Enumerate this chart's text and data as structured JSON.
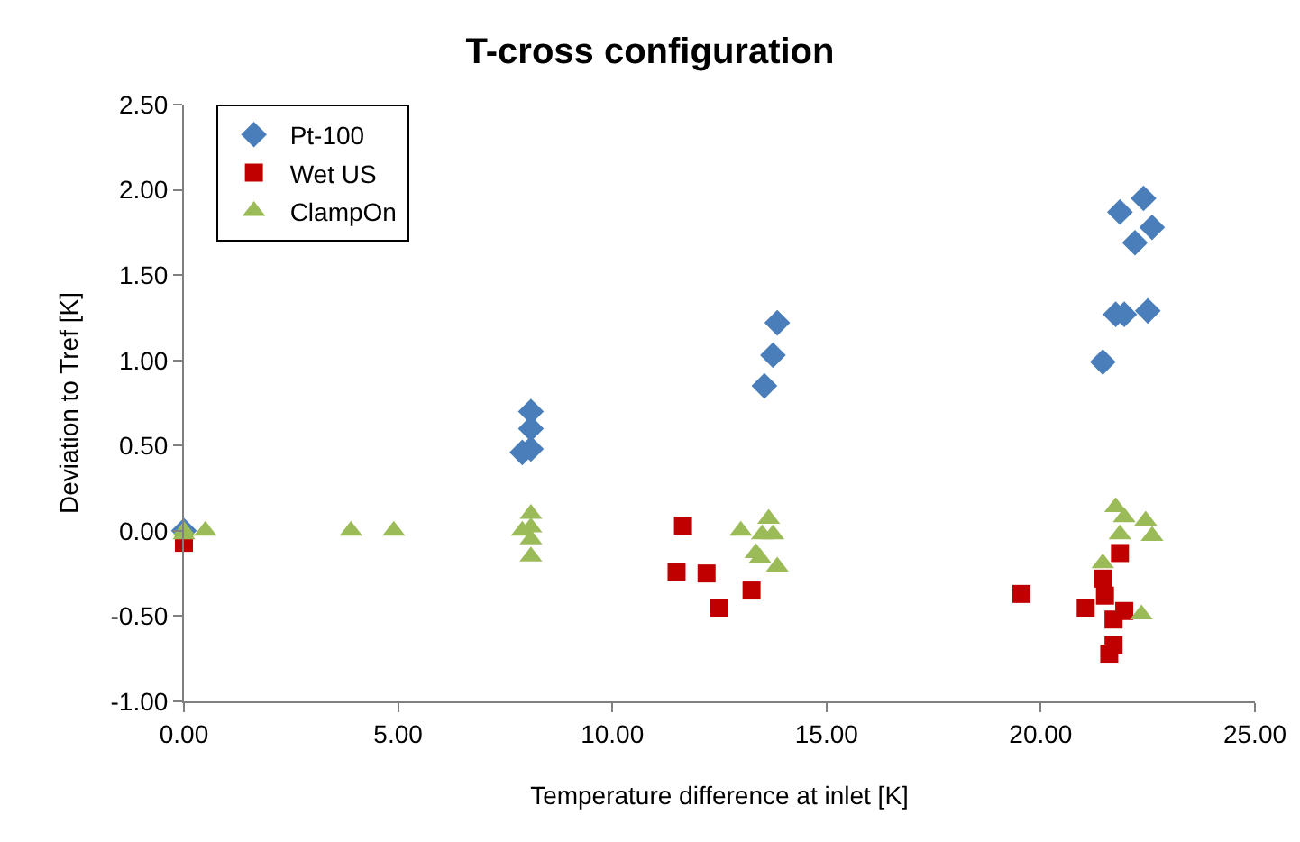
{
  "chart_data": {
    "type": "scatter",
    "title": "T-cross configuration",
    "xlabel": "Temperature difference at inlet [K]",
    "ylabel": "Deviation to Tref [K]",
    "xlim": [
      0,
      25
    ],
    "xticks": [
      {
        "value": 0,
        "label": "0.00"
      },
      {
        "value": 5,
        "label": "5.00"
      },
      {
        "value": 10,
        "label": "10.00"
      },
      {
        "value": 15,
        "label": "15.00"
      },
      {
        "value": 20,
        "label": "20.00"
      },
      {
        "value": 25,
        "label": "25.00"
      }
    ],
    "ylim": [
      -1,
      2.5
    ],
    "yticks": [
      {
        "value": -1,
        "label": "-1.00"
      },
      {
        "value": -0.5,
        "label": "-0.50"
      },
      {
        "value": 0,
        "label": "0.00"
      },
      {
        "value": 0.5,
        "label": "0.50"
      },
      {
        "value": 1,
        "label": "1.00"
      },
      {
        "value": 1.5,
        "label": "1.50"
      },
      {
        "value": 2,
        "label": "2.00"
      },
      {
        "value": 2.5,
        "label": "2.50"
      }
    ],
    "grid": false,
    "legend": "top left",
    "series": [
      {
        "name": "Pt-100",
        "color": "#4a7ebb",
        "marker": "diamond",
        "x": [
          0,
          7.9,
          8.1,
          8.1,
          8.1,
          13.55,
          13.75,
          13.85,
          21.45,
          21.75,
          21.95,
          22.2,
          22.5,
          21.85,
          22.4,
          22.6
        ],
        "values": [
          0.0,
          0.46,
          0.48,
          0.6,
          0.7,
          0.85,
          1.03,
          1.22,
          0.99,
          1.27,
          1.27,
          1.69,
          1.29,
          1.87,
          1.95,
          1.78
        ]
      },
      {
        "name": "Wet US",
        "color": "#c00000",
        "marker": "square",
        "x": [
          0,
          11.65,
          11.5,
          12.2,
          12.5,
          13.25,
          19.55,
          21.05,
          21.45,
          21.5,
          21.6,
          21.7,
          21.7,
          21.95,
          21.85
        ],
        "values": [
          -0.07,
          0.03,
          -0.24,
          -0.25,
          -0.45,
          -0.35,
          -0.37,
          -0.45,
          -0.28,
          -0.38,
          -0.72,
          -0.67,
          -0.52,
          -0.47,
          -0.13
        ]
      },
      {
        "name": "ClampOn",
        "color": "#9bbb59",
        "marker": "triangle",
        "x": [
          0,
          0,
          0.5,
          3.9,
          4.9,
          7.9,
          8.1,
          8.1,
          8.1,
          8.1,
          13.0,
          13.65,
          13.5,
          13.75,
          13.35,
          13.45,
          13.85,
          21.75,
          21.95,
          22.45,
          22.6,
          21.85,
          21.45,
          22.35
        ],
        "values": [
          0,
          -0.02,
          0,
          0,
          0,
          0,
          0.1,
          0.02,
          -0.05,
          -0.15,
          0.0,
          0.07,
          -0.02,
          -0.02,
          -0.13,
          -0.16,
          -0.21,
          0.14,
          0.08,
          0.06,
          -0.03,
          -0.02,
          -0.19,
          -0.49
        ]
      }
    ]
  }
}
